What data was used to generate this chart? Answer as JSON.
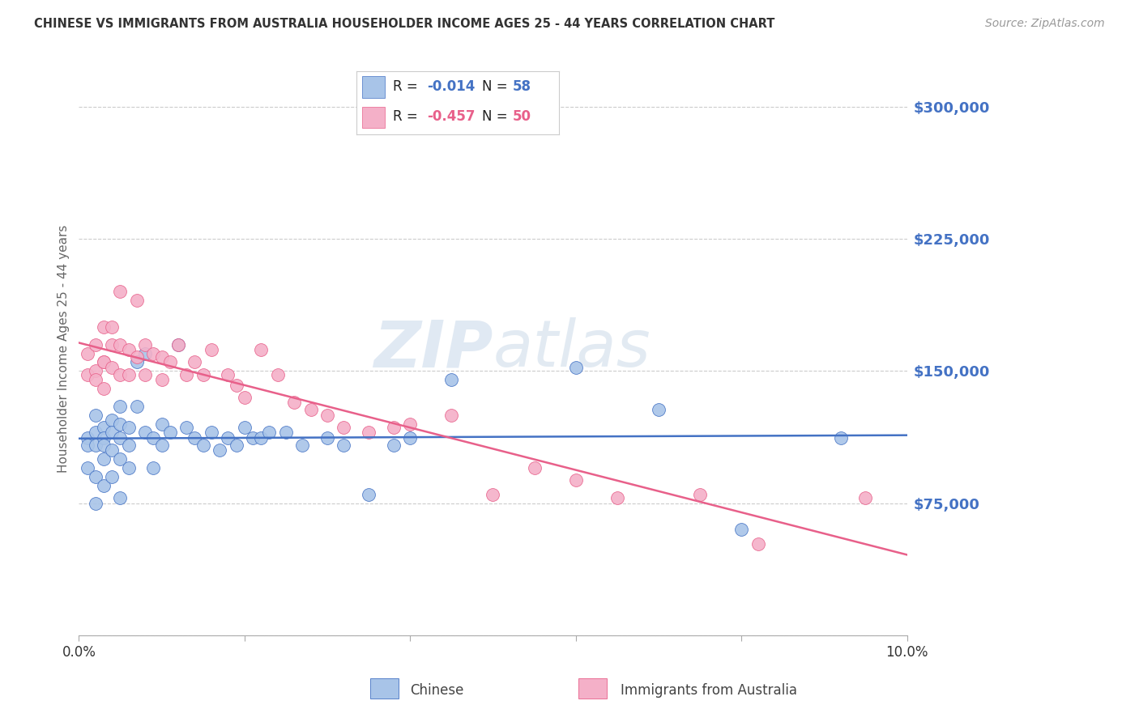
{
  "title": "CHINESE VS IMMIGRANTS FROM AUSTRALIA HOUSEHOLDER INCOME AGES 25 - 44 YEARS CORRELATION CHART",
  "source": "Source: ZipAtlas.com",
  "ylabel": "Householder Income Ages 25 - 44 years",
  "xlim": [
    0.0,
    0.1
  ],
  "ylim": [
    0,
    325000
  ],
  "yticks": [
    0,
    75000,
    150000,
    225000,
    300000
  ],
  "ytick_labels": [
    "",
    "$75,000",
    "$150,000",
    "$225,000",
    "$300,000"
  ],
  "xticks": [
    0.0,
    0.02,
    0.04,
    0.06,
    0.08,
    0.1
  ],
  "xtick_labels": [
    "0.0%",
    "",
    "",
    "",
    "",
    "10.0%"
  ],
  "watermark": "ZIPatlas",
  "blue_color": "#4472c4",
  "pink_color": "#e8608a",
  "scatter_blue_color": "#a8c4e8",
  "scatter_pink_color": "#f4b0c8",
  "grid_color": "#cccccc",
  "axis_color": "#cccccc",
  "title_color": "#333333",
  "ylabel_color": "#666666",
  "ytick_label_color": "#4472c4",
  "legend_blue_r": "-0.014",
  "legend_blue_n": "58",
  "legend_pink_r": "-0.457",
  "legend_pink_n": "50",
  "chinese_x": [
    0.001,
    0.001,
    0.001,
    0.002,
    0.002,
    0.002,
    0.002,
    0.002,
    0.003,
    0.003,
    0.003,
    0.003,
    0.003,
    0.004,
    0.004,
    0.004,
    0.004,
    0.005,
    0.005,
    0.005,
    0.005,
    0.005,
    0.006,
    0.006,
    0.006,
    0.007,
    0.007,
    0.008,
    0.008,
    0.009,
    0.009,
    0.01,
    0.01,
    0.011,
    0.012,
    0.013,
    0.014,
    0.015,
    0.016,
    0.017,
    0.018,
    0.019,
    0.02,
    0.021,
    0.022,
    0.023,
    0.025,
    0.027,
    0.03,
    0.032,
    0.035,
    0.038,
    0.04,
    0.045,
    0.06,
    0.07,
    0.08,
    0.092
  ],
  "chinese_y": [
    112000,
    108000,
    95000,
    115000,
    125000,
    108000,
    90000,
    75000,
    118000,
    112000,
    100000,
    85000,
    108000,
    122000,
    115000,
    105000,
    90000,
    130000,
    120000,
    112000,
    100000,
    78000,
    118000,
    108000,
    95000,
    155000,
    130000,
    160000,
    115000,
    112000,
    95000,
    120000,
    108000,
    115000,
    165000,
    118000,
    112000,
    108000,
    115000,
    105000,
    112000,
    108000,
    118000,
    112000,
    112000,
    115000,
    115000,
    108000,
    112000,
    108000,
    80000,
    108000,
    112000,
    145000,
    152000,
    128000,
    60000,
    112000
  ],
  "australia_x": [
    0.001,
    0.001,
    0.002,
    0.002,
    0.002,
    0.003,
    0.003,
    0.003,
    0.003,
    0.004,
    0.004,
    0.004,
    0.005,
    0.005,
    0.005,
    0.006,
    0.006,
    0.007,
    0.007,
    0.008,
    0.008,
    0.009,
    0.01,
    0.01,
    0.011,
    0.012,
    0.013,
    0.014,
    0.015,
    0.016,
    0.018,
    0.019,
    0.02,
    0.022,
    0.024,
    0.026,
    0.028,
    0.03,
    0.032,
    0.035,
    0.038,
    0.04,
    0.045,
    0.05,
    0.055,
    0.06,
    0.065,
    0.075,
    0.082,
    0.095
  ],
  "australia_y": [
    148000,
    160000,
    150000,
    165000,
    145000,
    175000,
    155000,
    140000,
    155000,
    165000,
    152000,
    175000,
    195000,
    165000,
    148000,
    162000,
    148000,
    190000,
    158000,
    165000,
    148000,
    160000,
    158000,
    145000,
    155000,
    165000,
    148000,
    155000,
    148000,
    162000,
    148000,
    142000,
    135000,
    162000,
    148000,
    132000,
    128000,
    125000,
    118000,
    115000,
    118000,
    120000,
    125000,
    80000,
    95000,
    88000,
    78000,
    80000,
    52000,
    78000
  ]
}
